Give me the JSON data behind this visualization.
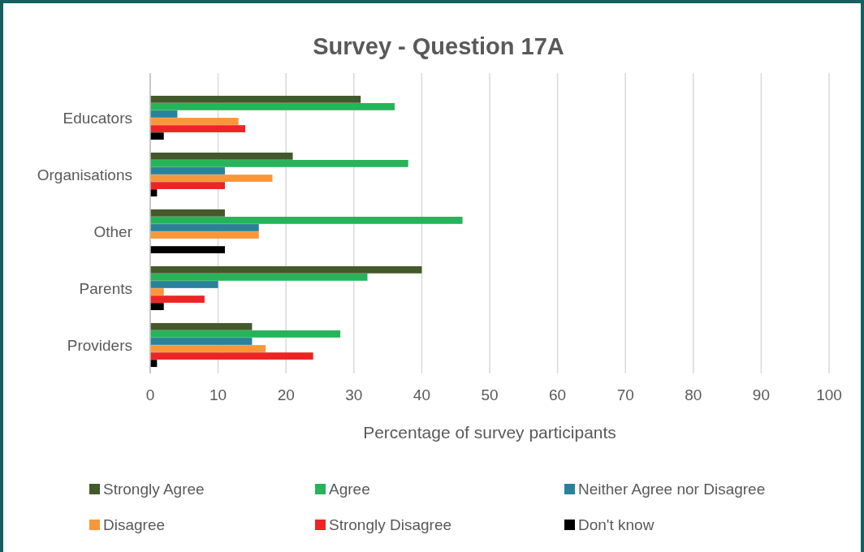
{
  "chart_data": {
    "type": "bar",
    "orientation": "horizontal",
    "title": "Survey - Question 17A",
    "xlabel": "Percentage of survey participants",
    "categories": [
      "Educators",
      "Organisations",
      "Other",
      "Parents",
      "Providers"
    ],
    "series": [
      {
        "name": "Strongly Agree",
        "color": "#44592b",
        "values": [
          31,
          21,
          11,
          40,
          15
        ]
      },
      {
        "name": "Agree",
        "color": "#27b35a",
        "values": [
          36,
          38,
          46,
          32,
          28
        ]
      },
      {
        "name": "Neither Agree nor Disagree",
        "color": "#29829a",
        "values": [
          4,
          11,
          16,
          10,
          15
        ]
      },
      {
        "name": "Disagree",
        "color": "#f7973b",
        "values": [
          13,
          18,
          16,
          2,
          17
        ]
      },
      {
        "name": "Strongly Disagree",
        "color": "#ee2424",
        "values": [
          14,
          11,
          0,
          8,
          24
        ]
      },
      {
        "name": "Don't know",
        "color": "#000000",
        "values": [
          2,
          1,
          11,
          2,
          1
        ]
      }
    ],
    "xlim": [
      0,
      100
    ],
    "xticks": [
      0,
      10,
      20,
      30,
      40,
      50,
      60,
      70,
      80,
      90,
      100
    ],
    "grid": "x",
    "legend": "bottom"
  }
}
